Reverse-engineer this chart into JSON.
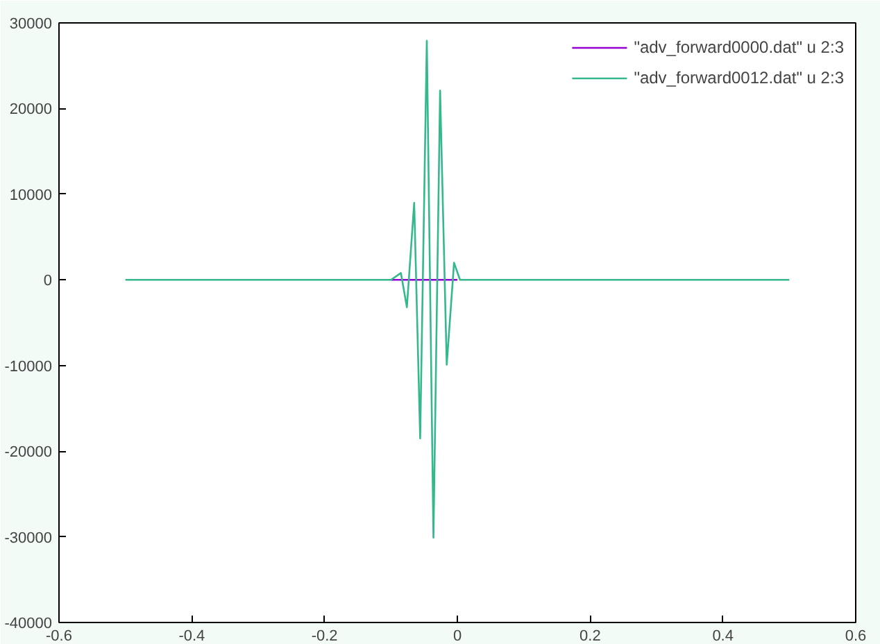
{
  "chart_data": {
    "type": "line",
    "xlim": [
      -0.6,
      0.6
    ],
    "ylim": [
      -40000,
      30000
    ],
    "xticks": [
      -0.6,
      -0.4,
      -0.2,
      0,
      0.2,
      0.4,
      0.6
    ],
    "yticks": [
      -40000,
      -30000,
      -20000,
      -10000,
      0,
      10000,
      20000,
      30000
    ],
    "grid": false,
    "legend": "top right",
    "marker": "none",
    "line_style": "solid",
    "series": [
      {
        "name": "\"adv_forward0000.dat\" u 2:3",
        "color": "#9400d3",
        "x": [
          -0.1,
          0.0
        ],
        "values": [
          0,
          0
        ]
      },
      {
        "name": "\"adv_forward0012.dat\" u 2:3",
        "color": "#35b88e",
        "x": [
          -0.5,
          -0.1,
          -0.085,
          -0.076,
          -0.065,
          -0.056,
          -0.046,
          -0.036,
          -0.026,
          -0.016,
          -0.005,
          0.004,
          0.5
        ],
        "values": [
          0,
          0,
          800,
          -3200,
          9000,
          -18500,
          27900,
          -30100,
          22100,
          -9900,
          2000,
          0,
          0
        ]
      }
    ]
  }
}
